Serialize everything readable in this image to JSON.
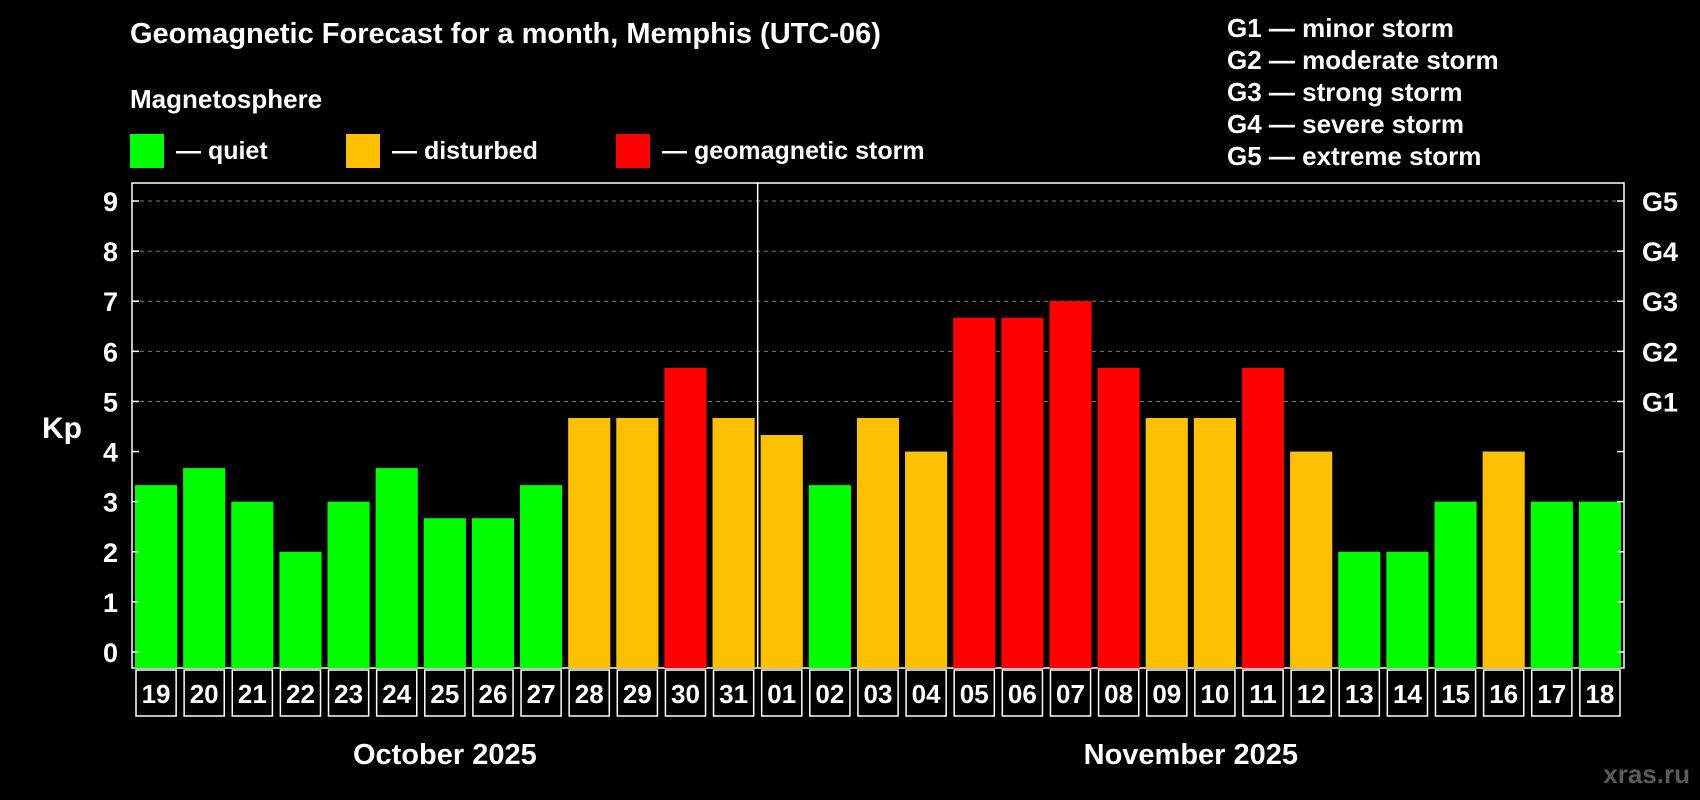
{
  "colors": {
    "background": "#000000",
    "quiet": "#00ff00",
    "disturbed": "#ffc000",
    "storm": "#ff0000",
    "text": "#ffffff",
    "watermark": "#5a5a5a"
  },
  "header": {
    "title": "Geomagnetic Forecast for a month, Memphis (UTC-06)",
    "subtitle": "Magnetosphere"
  },
  "legend": [
    {
      "label": "— quiet",
      "color_key": "quiet"
    },
    {
      "label": "— disturbed",
      "color_key": "disturbed"
    },
    {
      "label": "— geomagnetic storm",
      "color_key": "storm"
    }
  ],
  "storm_scale": [
    "G1 — minor storm",
    "G2 — moderate storm",
    "G3 — strong storm",
    "G4 — severe storm",
    "G5 — extreme storm"
  ],
  "watermark": "xras.ru",
  "chart_data": {
    "type": "bar",
    "ylabel": "Kp",
    "ylim": [
      0,
      9
    ],
    "yticks": [
      0,
      1,
      2,
      3,
      4,
      5,
      6,
      7,
      8,
      9
    ],
    "right_ticks": [
      {
        "value": 5,
        "label": "G1"
      },
      {
        "value": 6,
        "label": "G2"
      },
      {
        "value": 7,
        "label": "G3"
      },
      {
        "value": 8,
        "label": "G4"
      },
      {
        "value": 9,
        "label": "G5"
      }
    ],
    "grid": "dashed horizontal at 5-9",
    "categories": [
      "19",
      "20",
      "21",
      "22",
      "23",
      "24",
      "25",
      "26",
      "27",
      "28",
      "29",
      "30",
      "31",
      "01",
      "02",
      "03",
      "04",
      "05",
      "06",
      "07",
      "08",
      "09",
      "10",
      "11",
      "12",
      "13",
      "14",
      "15",
      "16",
      "17",
      "18"
    ],
    "values": [
      3.33,
      3.67,
      3.0,
      2.0,
      3.0,
      3.67,
      2.67,
      2.67,
      3.33,
      4.67,
      4.67,
      5.67,
      4.67,
      4.33,
      3.33,
      4.67,
      4.0,
      6.67,
      6.67,
      7.0,
      5.67,
      4.67,
      4.67,
      5.67,
      4.0,
      2.0,
      2.0,
      3.0,
      4.0,
      3.0,
      3.0
    ],
    "levels": [
      "quiet",
      "quiet",
      "quiet",
      "quiet",
      "quiet",
      "quiet",
      "quiet",
      "quiet",
      "quiet",
      "disturbed",
      "disturbed",
      "storm",
      "disturbed",
      "disturbed",
      "quiet",
      "disturbed",
      "disturbed",
      "storm",
      "storm",
      "storm",
      "storm",
      "disturbed",
      "disturbed",
      "storm",
      "disturbed",
      "quiet",
      "quiet",
      "quiet",
      "disturbed",
      "quiet",
      "quiet"
    ],
    "months": [
      {
        "label": "October 2025",
        "start": 0,
        "count": 13
      },
      {
        "label": "November 2025",
        "start": 13,
        "count": 18
      }
    ]
  }
}
